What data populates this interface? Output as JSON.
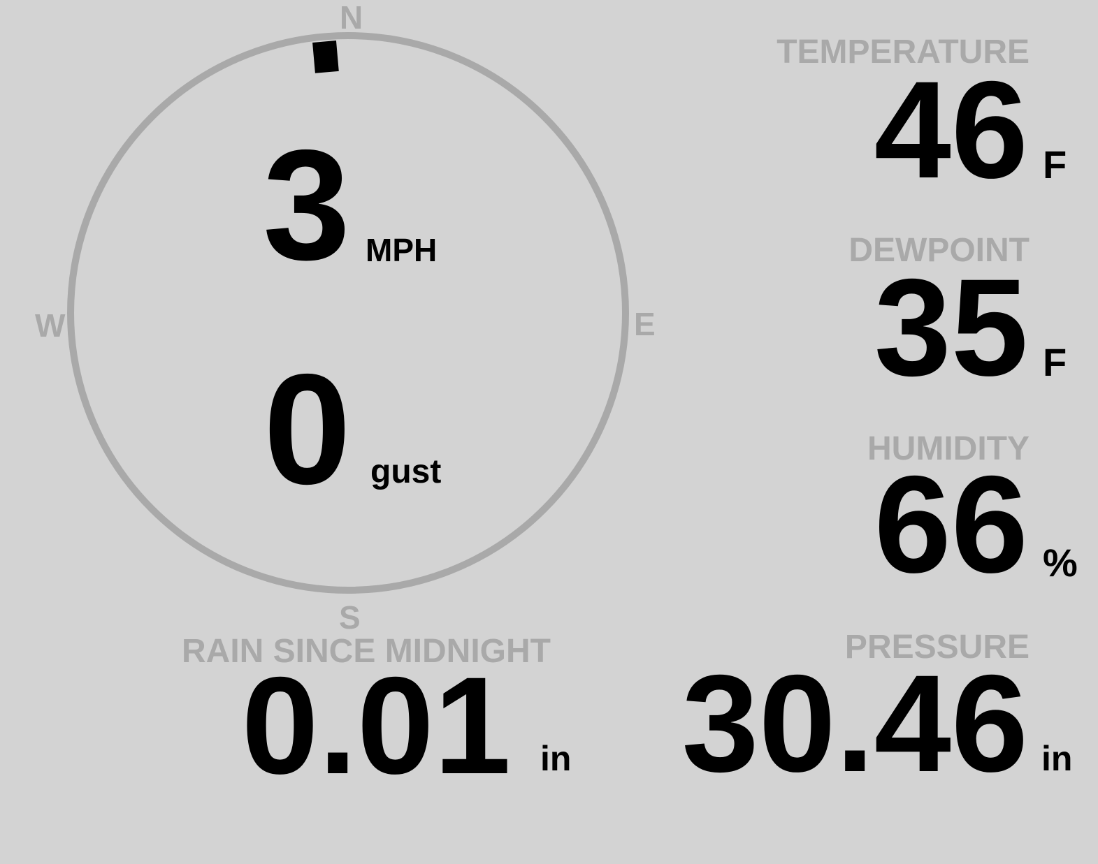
{
  "colors": {
    "background": "#d3d3d3",
    "label": "#a9a9a9",
    "value": "#000000",
    "ring": "#a9a9a9"
  },
  "compass": {
    "north": "N",
    "east": "E",
    "south": "S",
    "west": "W",
    "wind_direction_deg": 355
  },
  "wind": {
    "speed": "3",
    "speed_unit": "MPH",
    "gust": "0",
    "gust_unit": "gust"
  },
  "temperature": {
    "label": "TEMPERATURE",
    "value": "46",
    "unit": "F"
  },
  "dewpoint": {
    "label": "DEWPOINT",
    "value": "35",
    "unit": "F"
  },
  "humidity": {
    "label": "HUMIDITY",
    "value": "66",
    "unit": "%"
  },
  "pressure": {
    "label": "PRESSURE",
    "value": "30.46",
    "unit": "in"
  },
  "rain": {
    "label": "RAIN SINCE MIDNIGHT",
    "value": "0.01",
    "unit": "in"
  }
}
